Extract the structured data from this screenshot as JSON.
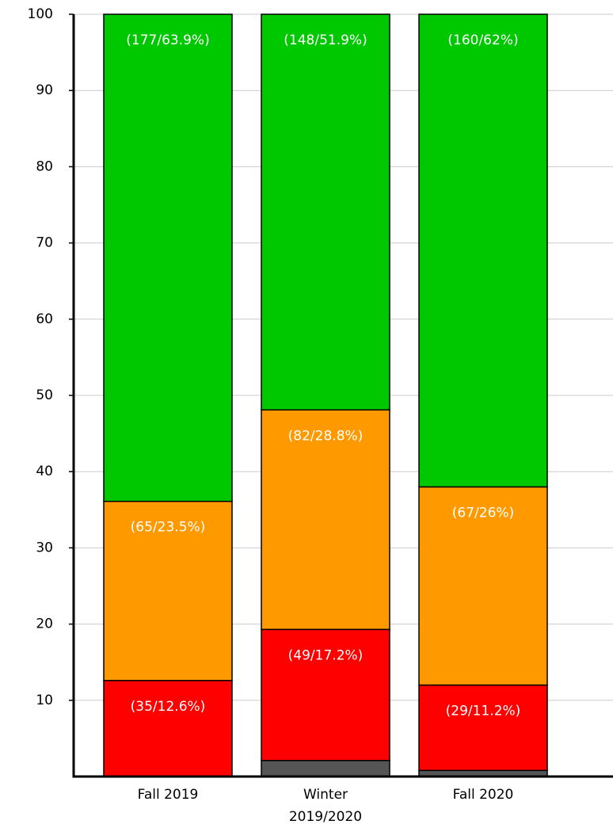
{
  "chart_data": {
    "type": "bar",
    "stacked": true,
    "categories": [
      "Fall 2019",
      "Winter 2019/2020",
      "Fall 2020"
    ],
    "series": [
      {
        "color": "#555555",
        "values": [
          0,
          2.1,
          0.8
        ]
      },
      {
        "color": "#ff0000",
        "values": [
          12.6,
          17.2,
          11.2
        ],
        "value_labels": [
          "(35/12.6%)",
          "(49/17.2%)",
          "(29/11.2%)"
        ]
      },
      {
        "color": "#ff9900",
        "values": [
          23.5,
          28.8,
          26
        ],
        "value_labels": [
          "(65/23.5%)",
          "(82/28.8%)",
          "(67/26%)"
        ]
      },
      {
        "color": "#00c800",
        "values": [
          63.9,
          51.9,
          62
        ],
        "value_labels": [
          "(177/63.9%)",
          "(148/51.9%)",
          "(160/62%)"
        ]
      }
    ],
    "ylim": [
      0,
      100
    ],
    "yticks": [
      10,
      20,
      30,
      40,
      50,
      60,
      70,
      80,
      90,
      100
    ],
    "grid": true
  }
}
